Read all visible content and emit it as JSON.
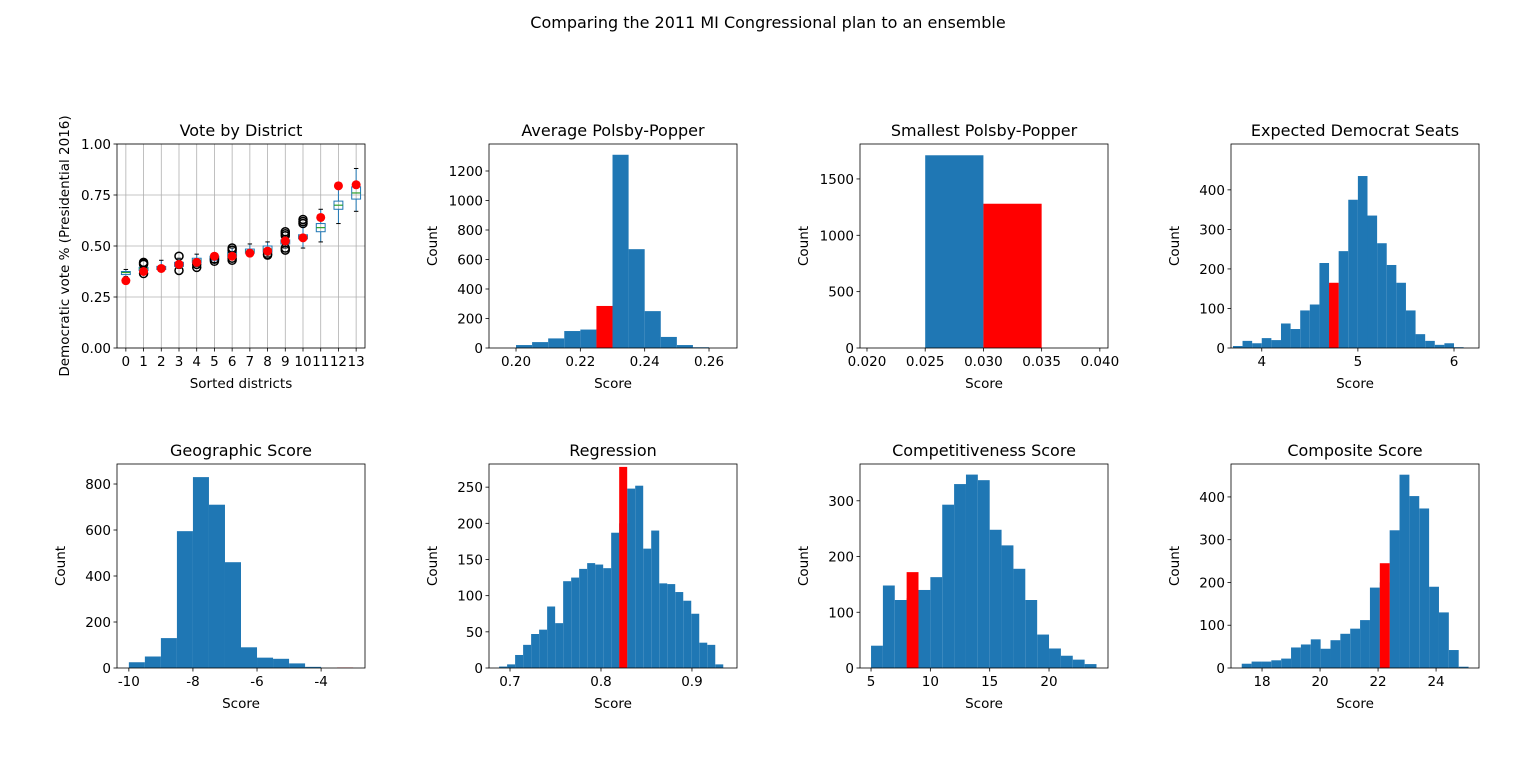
{
  "title": "Comparing the 2011 MI Congressional plan to an ensemble",
  "chart_data": [
    {
      "type": "box",
      "title": "Vote by District",
      "xlabel": "Sorted districts",
      "ylabel": "Democratic vote % (Presidential 2016)",
      "categories": [
        0,
        1,
        2,
        3,
        4,
        5,
        6,
        7,
        8,
        9,
        10,
        11,
        12,
        13
      ],
      "boxes": [
        {
          "whislo": 0.35,
          "q1": 0.36,
          "med": 0.37,
          "q3": 0.375,
          "whishi": 0.385,
          "fliers": []
        },
        {
          "whislo": 0.37,
          "q1": 0.38,
          "med": 0.39,
          "q3": 0.395,
          "whishi": 0.4,
          "fliers": [
            0.365,
            0.41,
            0.415,
            0.42
          ]
        },
        {
          "whislo": 0.375,
          "q1": 0.385,
          "med": 0.39,
          "q3": 0.4,
          "whishi": 0.43,
          "fliers": []
        },
        {
          "whislo": 0.39,
          "q1": 0.4,
          "med": 0.41,
          "q3": 0.42,
          "whishi": 0.44,
          "fliers": [
            0.38,
            0.45
          ]
        },
        {
          "whislo": 0.4,
          "q1": 0.42,
          "med": 0.43,
          "q3": 0.44,
          "whishi": 0.46,
          "fliers": [
            0.395,
            0.41
          ]
        },
        {
          "whislo": 0.42,
          "q1": 0.43,
          "med": 0.44,
          "q3": 0.45,
          "whishi": 0.46,
          "fliers": [
            0.425,
            0.435
          ]
        },
        {
          "whislo": 0.44,
          "q1": 0.45,
          "med": 0.46,
          "q3": 0.47,
          "whishi": 0.49,
          "fliers": [
            0.43,
            0.44,
            0.48,
            0.49
          ]
        },
        {
          "whislo": 0.45,
          "q1": 0.465,
          "med": 0.475,
          "q3": 0.485,
          "whishi": 0.51,
          "fliers": []
        },
        {
          "whislo": 0.45,
          "q1": 0.47,
          "med": 0.485,
          "q3": 0.5,
          "whishi": 0.52,
          "fliers": [
            0.455,
            0.46
          ]
        },
        {
          "whislo": 0.49,
          "q1": 0.51,
          "med": 0.52,
          "q3": 0.53,
          "whishi": 0.55,
          "fliers": [
            0.48,
            0.49,
            0.55,
            0.56,
            0.57
          ]
        },
        {
          "whislo": 0.49,
          "q1": 0.535,
          "med": 0.545,
          "q3": 0.555,
          "whishi": 0.6,
          "fliers": [
            0.61,
            0.62,
            0.63
          ]
        },
        {
          "whislo": 0.52,
          "q1": 0.57,
          "med": 0.59,
          "q3": 0.61,
          "whishi": 0.68,
          "fliers": []
        },
        {
          "whislo": 0.61,
          "q1": 0.68,
          "med": 0.7,
          "q3": 0.72,
          "whishi": 0.78,
          "fliers": []
        },
        {
          "whislo": 0.67,
          "q1": 0.73,
          "med": 0.76,
          "q3": 0.79,
          "whishi": 0.88,
          "fliers": []
        }
      ],
      "points": [
        0.33,
        0.375,
        0.39,
        0.41,
        0.42,
        0.45,
        0.45,
        0.465,
        0.475,
        0.525,
        0.54,
        0.64,
        0.795,
        0.8
      ],
      "box_color": "#1f77b4",
      "median_color": "#2ca02c",
      "point_color": "red",
      "ylim": [
        0,
        1
      ],
      "yticks": [
        {
          "value": 0,
          "label": "0.00"
        },
        {
          "value": 0.25,
          "label": "0.25"
        },
        {
          "value": 0.5,
          "label": "0.50"
        },
        {
          "value": 0.75,
          "label": "0.75"
        },
        {
          "value": 1,
          "label": "1.00"
        }
      ],
      "grid": true
    },
    {
      "type": "hist",
      "title": "Average Polsby-Popper",
      "xlabel": "Score",
      "ylabel": "Count",
      "bins": [
        0.2,
        0.205,
        0.21,
        0.215,
        0.22,
        0.225,
        0.23,
        0.235,
        0.24,
        0.245,
        0.25,
        0.255,
        0.26
      ],
      "counts": [
        20,
        40,
        65,
        115,
        125,
        130,
        1310,
        670,
        250,
        75,
        20,
        5
      ],
      "color": "#1f77b4",
      "highlight": {
        "bins": [
          0.225,
          0.23
        ],
        "count": 285,
        "color": "red"
      },
      "xlim": [
        0.1916,
        0.2687
      ],
      "xticks": [
        {
          "value": 0.2,
          "label": "0.20"
        },
        0.22,
        0.24,
        0.26
      ],
      "ylim": [
        0,
        1383
      ],
      "yticks": [
        0,
        200,
        400,
        600,
        800,
        1000,
        1200
      ]
    },
    {
      "type": "hist",
      "title": "Smallest Polsby-Popper",
      "xlabel": "Score",
      "ylabel": "Count",
      "bins": [
        0.025,
        0.03
      ],
      "counts": [
        1710
      ],
      "color": "#1f77b4",
      "highlight": {
        "bins": [
          0.03,
          0.035
        ],
        "count": 1280,
        "color": "red"
      },
      "xlim": [
        0.0194,
        0.0407
      ],
      "xticks": [
        {
          "value": 0.02,
          "label": "0.020"
        },
        {
          "value": 0.025,
          "label": "0.025"
        },
        {
          "value": 0.03,
          "label": "0.030"
        },
        {
          "value": 0.035,
          "label": "0.035"
        },
        {
          "value": 0.04,
          "label": "0.040"
        }
      ],
      "ylim": [
        0,
        1810
      ],
      "yticks": [
        0,
        500,
        1000,
        1500
      ]
    },
    {
      "type": "hist",
      "title": "Expected Democrat Seats",
      "xlabel": "Score",
      "ylabel": "Count",
      "bins": [
        3.7,
        3.8,
        3.9,
        4.0,
        4.1,
        4.2,
        4.3,
        4.4,
        4.5,
        4.6,
        4.7,
        4.8,
        4.9,
        5.0,
        5.1,
        5.2,
        5.3,
        5.4,
        5.5,
        5.6,
        5.7,
        5.8,
        5.9,
        6.0,
        6.1
      ],
      "counts": [
        5,
        18,
        12,
        25,
        20,
        62,
        48,
        95,
        110,
        215,
        160,
        245,
        375,
        435,
        335,
        265,
        210,
        165,
        95,
        35,
        18,
        8,
        12,
        2
      ],
      "color": "#1f77b4",
      "highlight": {
        "bins": [
          4.7,
          4.8
        ],
        "count": 165,
        "color": "red"
      },
      "xlim": [
        3.68,
        6.26
      ],
      "xticks": [
        4,
        5,
        6
      ],
      "ylim": [
        0,
        516
      ],
      "yticks": [
        0,
        100,
        200,
        300,
        400
      ]
    },
    {
      "type": "hist",
      "title": "Geographic Score",
      "xlabel": "Score",
      "ylabel": "Count",
      "bins": [
        -10,
        -9.5,
        -9,
        -8.5,
        -8,
        -7.5,
        -7,
        -6.5,
        -6,
        -5.5,
        -5,
        -4.5,
        -4
      ],
      "counts": [
        25,
        50,
        130,
        595,
        830,
        710,
        460,
        90,
        45,
        40,
        20,
        5
      ],
      "color": "#1f77b4",
      "highlight": {
        "bins": [
          -3.5,
          -3.0
        ],
        "count": 2,
        "color": "red"
      },
      "xlim": [
        -10.37,
        -2.63
      ],
      "xticks": [
        -10,
        -8,
        -6,
        -4
      ],
      "ylim": [
        0,
        887
      ],
      "yticks": [
        0,
        200,
        400,
        600,
        800
      ]
    },
    {
      "type": "hist",
      "title": "Regression",
      "xlabel": "Score",
      "ylabel": "Count",
      "bins": [
        0.688,
        0.6968,
        0.7056,
        0.7144,
        0.7232,
        0.732,
        0.7408,
        0.7496,
        0.7584,
        0.7672,
        0.776,
        0.7848,
        0.7936,
        0.8024,
        0.8112,
        0.82,
        0.8288,
        0.8376,
        0.8464,
        0.8552,
        0.864,
        0.8728,
        0.8816,
        0.8904,
        0.8992,
        0.908,
        0.9168,
        0.9256,
        0.9344
      ],
      "counts": [
        2,
        5,
        18,
        32,
        47,
        53,
        85,
        62,
        120,
        125,
        137,
        145,
        143,
        138,
        187,
        200,
        248,
        252,
        165,
        190,
        117,
        116,
        105,
        93,
        75,
        35,
        32,
        5
      ],
      "color": "#1f77b4",
      "highlight": {
        "bins": [
          0.82,
          0.8288
        ],
        "count": 278,
        "color": "red"
      },
      "xlim": [
        0.6769,
        0.9495
      ],
      "xticks": [
        0.7,
        0.8,
        0.9
      ],
      "ylim": [
        0,
        282
      ],
      "yticks": [
        0,
        50,
        100,
        150,
        200,
        250
      ]
    },
    {
      "type": "hist",
      "title": "Competitiveness Score",
      "xlabel": "Score",
      "ylabel": "Count",
      "bins": [
        5,
        6,
        7,
        8,
        9,
        10,
        11,
        12,
        13,
        14,
        15,
        16,
        17,
        18,
        19,
        20,
        21,
        22,
        23,
        24
      ],
      "counts": [
        40,
        148,
        122,
        125,
        140,
        163,
        293,
        330,
        347,
        337,
        248,
        220,
        178,
        122,
        60,
        35,
        22,
        15,
        7
      ],
      "color": "#1f77b4",
      "highlight": {
        "bins": [
          8,
          9
        ],
        "count": 172,
        "color": "red"
      },
      "xlim": [
        4.07,
        24.97
      ],
      "xticks": [
        5,
        10,
        15,
        20
      ],
      "ylim": [
        0,
        366
      ],
      "yticks": [
        0,
        100,
        200,
        300
      ]
    },
    {
      "type": "hist",
      "title": "Composite Score",
      "xlabel": "Score",
      "ylabel": "Count",
      "bins": [
        17.3,
        17.64,
        17.98,
        18.32,
        18.66,
        19,
        19.34,
        19.68,
        20.02,
        20.36,
        20.7,
        21.04,
        21.38,
        21.72,
        22.06,
        22.4,
        22.74,
        23.08,
        23.42,
        23.76,
        24.1,
        24.44,
        24.78,
        25.12
      ],
      "counts": [
        10,
        15,
        15,
        18,
        22,
        48,
        55,
        67,
        45,
        65,
        80,
        92,
        112,
        188,
        200,
        322,
        452,
        402,
        373,
        190,
        130,
        42,
        3
      ],
      "color": "#1f77b4",
      "highlight": {
        "bins": [
          22.06,
          22.4
        ],
        "count": 245,
        "color": "red"
      },
      "xlim": [
        16.93,
        25.48
      ],
      "xticks": [
        18,
        20,
        22,
        24
      ],
      "ylim": [
        0,
        477
      ],
      "yticks": [
        0,
        100,
        200,
        300,
        400
      ]
    }
  ]
}
